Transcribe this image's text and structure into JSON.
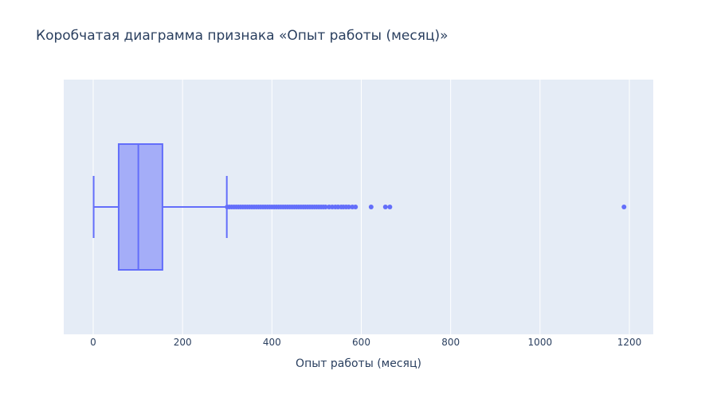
{
  "chart_data": {
    "type": "box",
    "title": "Коробчатая диаграмма признака «Опыт работы (месяц)»",
    "xlabel": "Опыт работы (месяц)",
    "ylabel": "",
    "orientation": "horizontal",
    "xlim": [
      -65,
      1255
    ],
    "x_ticks": [
      0,
      200,
      400,
      600,
      800,
      1000,
      1200
    ],
    "grid": true,
    "box": {
      "lower_fence": 1,
      "q1": 57,
      "median": 101,
      "q3": 155,
      "upper_fence": 299
    },
    "outliers": [
      300,
      305,
      310,
      315,
      320,
      325,
      330,
      335,
      340,
      345,
      350,
      355,
      360,
      365,
      370,
      375,
      380,
      385,
      390,
      395,
      400,
      405,
      410,
      415,
      420,
      425,
      430,
      435,
      440,
      445,
      450,
      455,
      460,
      465,
      470,
      475,
      480,
      485,
      490,
      495,
      500,
      505,
      510,
      515,
      520,
      528,
      535,
      542,
      548,
      555,
      560,
      566,
      572,
      580,
      587,
      622,
      654,
      664,
      1188
    ],
    "colors": {
      "box_line": "#636efa",
      "box_fill": "rgba(99,110,250,0.5)",
      "plot_bg": "#e5ecf6",
      "grid": "#ffffff",
      "text": "#2a3f5f"
    }
  }
}
